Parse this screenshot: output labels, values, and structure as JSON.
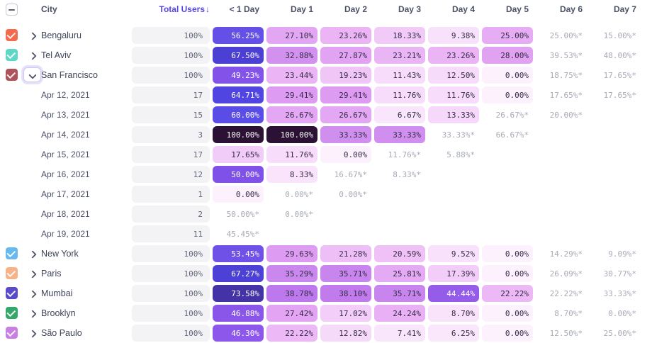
{
  "header": {
    "columns": {
      "city": "City",
      "total": "Total Users",
      "days": [
        "< 1 Day",
        "Day 1",
        "Day 2",
        "Day 3",
        "Day 4",
        "Day 5",
        "Day 6",
        "Day 7"
      ]
    },
    "sort_arrow": "↓",
    "select_all_state": "indeterminate"
  },
  "accent_color": "#5348E4",
  "heatmap_stops": [
    [
      0,
      "#FCF1FD"
    ],
    [
      5,
      "#FAE9FC"
    ],
    [
      10,
      "#F8E1FB"
    ],
    [
      14,
      "#F5D7FA"
    ],
    [
      18,
      "#F2CBF8"
    ],
    [
      21,
      "#EEBFF6"
    ],
    [
      24,
      "#E9B1F5"
    ],
    [
      27,
      "#E3A6F3"
    ],
    [
      30,
      "#DC9AF1"
    ],
    [
      34,
      "#CE8CEE"
    ],
    [
      38,
      "#C37CED"
    ],
    [
      42,
      "#A767EB"
    ],
    [
      45,
      "#9159EA"
    ],
    [
      48,
      "#8654E9"
    ],
    [
      51,
      "#7C50E8"
    ],
    [
      54,
      "#6C51E8"
    ],
    [
      58,
      "#5E4EE7"
    ],
    [
      62,
      "#564AE6"
    ],
    [
      66,
      "#4F43DF"
    ],
    [
      70,
      "#4839C2"
    ],
    [
      75,
      "#41319C"
    ],
    [
      82,
      "#37205C"
    ],
    [
      100,
      "#2B1133"
    ]
  ],
  "rows": [
    {
      "type": "city",
      "name": "Bengaluru",
      "checkbox_color": "#F5694C",
      "checked": true,
      "expanded": false,
      "total": "100%",
      "cells": [
        {
          "kind": "pill",
          "value": 56.25,
          "label": "56.25%"
        },
        {
          "kind": "pill",
          "value": 27.1,
          "label": "27.10%"
        },
        {
          "kind": "pill",
          "value": 23.26,
          "label": "23.26%"
        },
        {
          "kind": "pill",
          "value": 18.33,
          "label": "18.33%"
        },
        {
          "kind": "pill",
          "value": 9.38,
          "label": "9.38%"
        },
        {
          "kind": "pill",
          "value": 25.0,
          "label": "25.00%"
        },
        {
          "kind": "muted",
          "label": "25.00%*"
        },
        {
          "kind": "muted",
          "label": "15.00%*"
        }
      ]
    },
    {
      "type": "city",
      "name": "Tel Aviv",
      "checkbox_color": "#5FD7C6",
      "checked": true,
      "expanded": false,
      "total": "100%",
      "cells": [
        {
          "kind": "pill",
          "value": 67.5,
          "label": "67.50%"
        },
        {
          "kind": "pill",
          "value": 32.88,
          "label": "32.88%"
        },
        {
          "kind": "pill",
          "value": 27.87,
          "label": "27.87%"
        },
        {
          "kind": "pill",
          "value": 23.21,
          "label": "23.21%"
        },
        {
          "kind": "pill",
          "value": 23.26,
          "label": "23.26%"
        },
        {
          "kind": "pill",
          "value": 28.0,
          "label": "28.00%"
        },
        {
          "kind": "muted",
          "label": "39.53%*"
        },
        {
          "kind": "muted",
          "label": "48.00%*"
        }
      ]
    },
    {
      "type": "city",
      "name": "San Francisco",
      "checkbox_color": "#B0525C",
      "checked": true,
      "expanded": true,
      "total": "100%",
      "cells": [
        {
          "kind": "pill",
          "value": 49.23,
          "label": "49.23%"
        },
        {
          "kind": "pill",
          "value": 23.44,
          "label": "23.44%"
        },
        {
          "kind": "pill",
          "value": 19.23,
          "label": "19.23%"
        },
        {
          "kind": "pill",
          "value": 11.43,
          "label": "11.43%"
        },
        {
          "kind": "pill",
          "value": 12.5,
          "label": "12.50%"
        },
        {
          "kind": "pill",
          "value": 0.0,
          "label": "0.00%"
        },
        {
          "kind": "muted",
          "label": "18.75%*"
        },
        {
          "kind": "muted",
          "label": "17.65%*"
        }
      ]
    },
    {
      "type": "date",
      "name": "Apr 12, 2021",
      "total": "17",
      "cells": [
        {
          "kind": "pill",
          "value": 64.71,
          "label": "64.71%"
        },
        {
          "kind": "pill",
          "value": 29.41,
          "label": "29.41%"
        },
        {
          "kind": "pill",
          "value": 29.41,
          "label": "29.41%"
        },
        {
          "kind": "pill",
          "value": 11.76,
          "label": "11.76%"
        },
        {
          "kind": "pill",
          "value": 11.76,
          "label": "11.76%"
        },
        {
          "kind": "pill",
          "value": 0.0,
          "label": "0.00%"
        },
        {
          "kind": "muted",
          "label": "17.65%*"
        },
        {
          "kind": "muted",
          "label": "17.65%*"
        }
      ]
    },
    {
      "type": "date",
      "name": "Apr 13, 2021",
      "total": "15",
      "cells": [
        {
          "kind": "pill",
          "value": 60.0,
          "label": "60.00%"
        },
        {
          "kind": "pill",
          "value": 26.67,
          "label": "26.67%"
        },
        {
          "kind": "pill",
          "value": 26.67,
          "label": "26.67%"
        },
        {
          "kind": "pill",
          "value": 6.67,
          "label": "6.67%"
        },
        {
          "kind": "pill",
          "value": 13.33,
          "label": "13.33%"
        },
        {
          "kind": "muted",
          "label": "26.67%*"
        },
        {
          "kind": "muted",
          "label": "20.00%*"
        },
        {
          "kind": "empty",
          "label": ""
        }
      ]
    },
    {
      "type": "date",
      "name": "Apr 14, 2021",
      "total": "3",
      "cells": [
        {
          "kind": "pill",
          "value": 100.0,
          "label": "100.00%"
        },
        {
          "kind": "pill",
          "value": 100.0,
          "label": "100.00%"
        },
        {
          "kind": "pill",
          "value": 33.33,
          "label": "33.33%"
        },
        {
          "kind": "pill",
          "value": 33.33,
          "label": "33.33%"
        },
        {
          "kind": "muted",
          "label": "33.33%*"
        },
        {
          "kind": "muted",
          "label": "66.67%*"
        },
        {
          "kind": "empty",
          "label": ""
        },
        {
          "kind": "empty",
          "label": ""
        }
      ]
    },
    {
      "type": "date",
      "name": "Apr 15, 2021",
      "total": "17",
      "cells": [
        {
          "kind": "pill",
          "value": 17.65,
          "label": "17.65%"
        },
        {
          "kind": "pill",
          "value": 11.76,
          "label": "11.76%"
        },
        {
          "kind": "pill",
          "value": 0.0,
          "label": "0.00%"
        },
        {
          "kind": "muted",
          "label": "11.76%*"
        },
        {
          "kind": "muted",
          "label": "5.88%*"
        },
        {
          "kind": "empty",
          "label": ""
        },
        {
          "kind": "empty",
          "label": ""
        },
        {
          "kind": "empty",
          "label": ""
        }
      ]
    },
    {
      "type": "date",
      "name": "Apr 16, 2021",
      "total": "12",
      "cells": [
        {
          "kind": "pill",
          "value": 50.0,
          "label": "50.00%"
        },
        {
          "kind": "pill",
          "value": 8.33,
          "label": "8.33%"
        },
        {
          "kind": "muted",
          "label": "16.67%*"
        },
        {
          "kind": "muted",
          "label": "8.33%*"
        },
        {
          "kind": "empty",
          "label": ""
        },
        {
          "kind": "empty",
          "label": ""
        },
        {
          "kind": "empty",
          "label": ""
        },
        {
          "kind": "empty",
          "label": ""
        }
      ]
    },
    {
      "type": "date",
      "name": "Apr 17, 2021",
      "total": "1",
      "cells": [
        {
          "kind": "pill",
          "value": 0.0,
          "label": "0.00%"
        },
        {
          "kind": "muted",
          "label": "0.00%*"
        },
        {
          "kind": "muted",
          "label": "0.00%*"
        },
        {
          "kind": "empty",
          "label": ""
        },
        {
          "kind": "empty",
          "label": ""
        },
        {
          "kind": "empty",
          "label": ""
        },
        {
          "kind": "empty",
          "label": ""
        },
        {
          "kind": "empty",
          "label": ""
        }
      ]
    },
    {
      "type": "date",
      "name": "Apr 18, 2021",
      "total": "2",
      "cells": [
        {
          "kind": "muted",
          "label": "50.00%*"
        },
        {
          "kind": "muted",
          "label": "0.00%*"
        },
        {
          "kind": "empty",
          "label": ""
        },
        {
          "kind": "empty",
          "label": ""
        },
        {
          "kind": "empty",
          "label": ""
        },
        {
          "kind": "empty",
          "label": ""
        },
        {
          "kind": "empty",
          "label": ""
        },
        {
          "kind": "empty",
          "label": ""
        }
      ]
    },
    {
      "type": "date",
      "name": "Apr 19, 2021",
      "total": "11",
      "cells": [
        {
          "kind": "muted",
          "label": "45.45%*"
        },
        {
          "kind": "empty",
          "label": ""
        },
        {
          "kind": "empty",
          "label": ""
        },
        {
          "kind": "empty",
          "label": ""
        },
        {
          "kind": "empty",
          "label": ""
        },
        {
          "kind": "empty",
          "label": ""
        },
        {
          "kind": "empty",
          "label": ""
        },
        {
          "kind": "empty",
          "label": ""
        }
      ]
    },
    {
      "type": "city",
      "name": "New York",
      "checkbox_color": "#67B9EF",
      "checked": true,
      "expanded": false,
      "total": "100%",
      "cells": [
        {
          "kind": "pill",
          "value": 53.45,
          "label": "53.45%"
        },
        {
          "kind": "pill",
          "value": 29.63,
          "label": "29.63%"
        },
        {
          "kind": "pill",
          "value": 21.28,
          "label": "21.28%"
        },
        {
          "kind": "pill",
          "value": 20.59,
          "label": "20.59%"
        },
        {
          "kind": "pill",
          "value": 9.52,
          "label": "9.52%"
        },
        {
          "kind": "pill",
          "value": 0.0,
          "label": "0.00%"
        },
        {
          "kind": "muted",
          "label": "14.29%*"
        },
        {
          "kind": "muted",
          "label": "9.09%*"
        }
      ]
    },
    {
      "type": "city",
      "name": "Paris",
      "checkbox_color": "#F8B287",
      "checked": true,
      "expanded": false,
      "total": "100%",
      "cells": [
        {
          "kind": "pill",
          "value": 67.27,
          "label": "67.27%"
        },
        {
          "kind": "pill",
          "value": 35.29,
          "label": "35.29%"
        },
        {
          "kind": "pill",
          "value": 35.71,
          "label": "35.71%"
        },
        {
          "kind": "pill",
          "value": 25.81,
          "label": "25.81%"
        },
        {
          "kind": "pill",
          "value": 17.39,
          "label": "17.39%"
        },
        {
          "kind": "pill",
          "value": 0.0,
          "label": "0.00%"
        },
        {
          "kind": "muted",
          "label": "26.09%*"
        },
        {
          "kind": "muted",
          "label": "30.77%*"
        }
      ]
    },
    {
      "type": "city",
      "name": "Mumbai",
      "checkbox_color": "#584CC8",
      "checked": true,
      "expanded": false,
      "total": "100%",
      "cells": [
        {
          "kind": "pill",
          "value": 73.58,
          "label": "73.58%"
        },
        {
          "kind": "pill",
          "value": 38.78,
          "label": "38.78%"
        },
        {
          "kind": "pill",
          "value": 38.1,
          "label": "38.10%"
        },
        {
          "kind": "pill",
          "value": 35.71,
          "label": "35.71%"
        },
        {
          "kind": "pill",
          "value": 44.44,
          "label": "44.44%"
        },
        {
          "kind": "pill",
          "value": 22.22,
          "label": "22.22%"
        },
        {
          "kind": "muted",
          "label": "22.22%*"
        },
        {
          "kind": "muted",
          "label": "33.33%*"
        }
      ]
    },
    {
      "type": "city",
      "name": "Brooklyn",
      "checkbox_color": "#33A868",
      "checked": true,
      "expanded": false,
      "total": "100%",
      "cells": [
        {
          "kind": "pill",
          "value": 46.88,
          "label": "46.88%"
        },
        {
          "kind": "pill",
          "value": 27.42,
          "label": "27.42%"
        },
        {
          "kind": "pill",
          "value": 17.02,
          "label": "17.02%"
        },
        {
          "kind": "pill",
          "value": 24.24,
          "label": "24.24%"
        },
        {
          "kind": "pill",
          "value": 8.7,
          "label": "8.70%"
        },
        {
          "kind": "pill",
          "value": 0.0,
          "label": "0.00%"
        },
        {
          "kind": "muted",
          "label": "8.70%*"
        },
        {
          "kind": "muted",
          "label": "0.00%*"
        }
      ]
    },
    {
      "type": "city",
      "name": "São Paulo",
      "checkbox_color": "#C77FE4",
      "checked": true,
      "expanded": false,
      "total": "100%",
      "cells": [
        {
          "kind": "pill",
          "value": 46.3,
          "label": "46.30%"
        },
        {
          "kind": "pill",
          "value": 22.22,
          "label": "22.22%"
        },
        {
          "kind": "pill",
          "value": 12.82,
          "label": "12.82%"
        },
        {
          "kind": "pill",
          "value": 7.41,
          "label": "7.41%"
        },
        {
          "kind": "pill",
          "value": 6.25,
          "label": "6.25%"
        },
        {
          "kind": "pill",
          "value": 0.0,
          "label": "0.00%"
        },
        {
          "kind": "muted",
          "label": "12.50%*"
        },
        {
          "kind": "muted",
          "label": "25.00%*"
        }
      ]
    }
  ]
}
